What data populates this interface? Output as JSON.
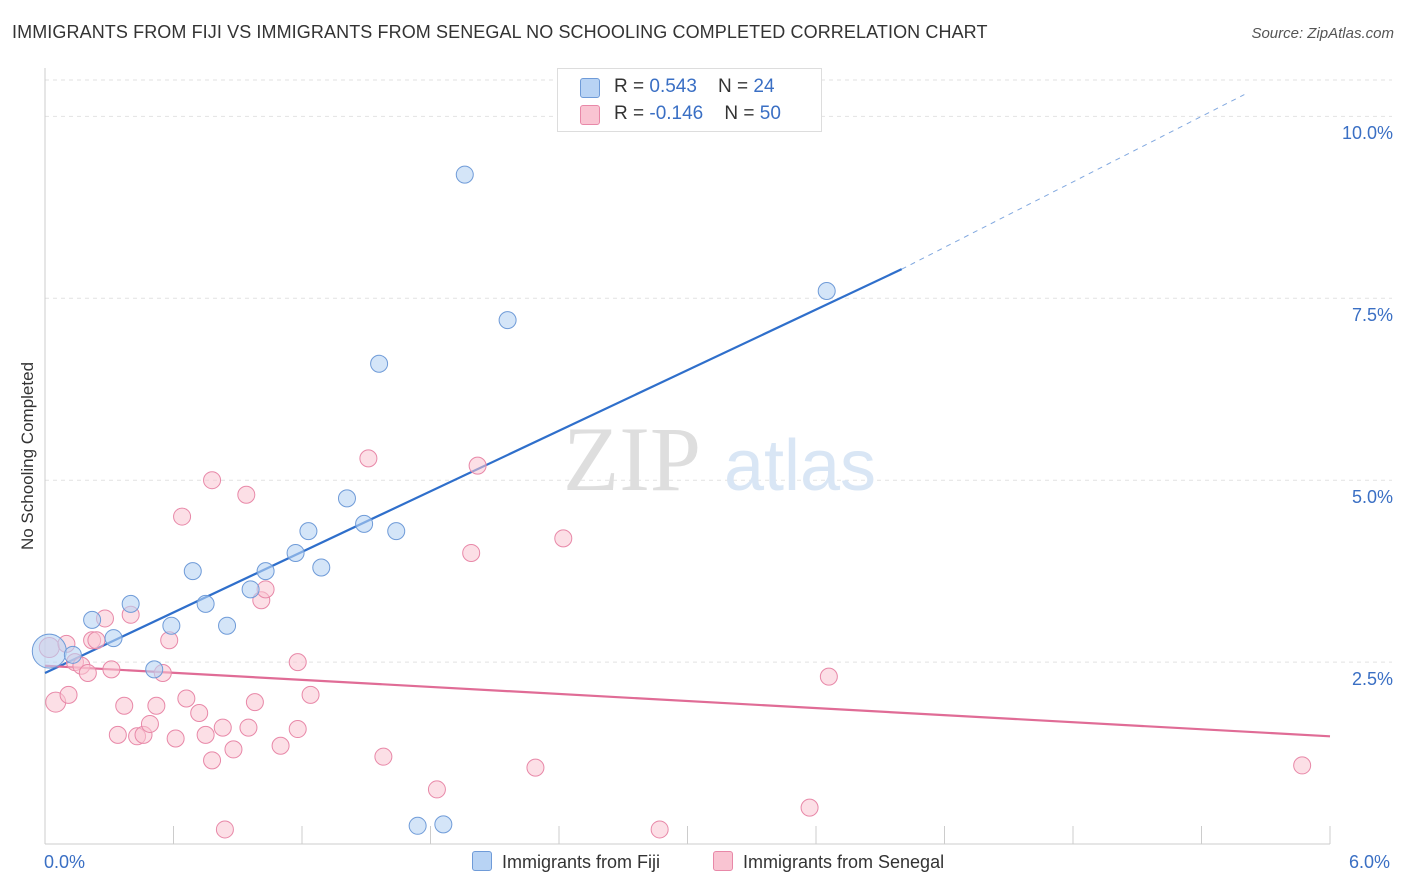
{
  "header": {
    "title": "IMMIGRANTS FROM FIJI VS IMMIGRANTS FROM SENEGAL NO SCHOOLING COMPLETED CORRELATION CHART",
    "source": "Source: ZipAtlas.com"
  },
  "watermark": {
    "zip": "ZIP",
    "atlas": "atlas"
  },
  "legend_top": {
    "rows": [
      {
        "r_label": "R = ",
        "r_value": "0.543",
        "n_label": "N = ",
        "n_value": "24"
      },
      {
        "r_label": "R = ",
        "r_value": "-0.146",
        "n_label": "N = ",
        "n_value": "50"
      }
    ]
  },
  "legend_bottom": {
    "fiji": "Immigrants from Fiji",
    "senegal": "Immigrants from Senegal"
  },
  "colors": {
    "fiji_fill": "#b8d3f4",
    "fiji_stroke": "#6f9bd8",
    "fiji_line": "#2f6fcb",
    "senegal_fill": "#f9c4d2",
    "senegal_stroke": "#e888a8",
    "senegal_line": "#e06c96",
    "tick_label": "#3a6fc4",
    "grid": "#e2e2e2"
  },
  "chart_data": {
    "type": "scatter",
    "title": "IMMIGRANTS FROM FIJI VS IMMIGRANTS FROM SENEGAL NO SCHOOLING COMPLETED CORRELATION CHART",
    "xlabel": "",
    "ylabel": "No Schooling Completed",
    "xlim": [
      0,
      6.0
    ],
    "ylim": [
      0,
      10.5
    ],
    "x_tick_labels": {
      "min": "0.0%",
      "max": "6.0%"
    },
    "y_ticks": [
      {
        "value": 2.5,
        "label": "2.5%"
      },
      {
        "value": 5.0,
        "label": "5.0%"
      },
      {
        "value": 7.5,
        "label": "7.5%"
      },
      {
        "value": 10.0,
        "label": "10.0%"
      }
    ],
    "grid": true,
    "legend_placement": "top-center",
    "series": [
      {
        "name": "Immigrants from Fiji",
        "r": 0.543,
        "n": 24,
        "points": [
          [
            0.02,
            2.65
          ],
          [
            0.13,
            2.6
          ],
          [
            0.22,
            3.08
          ],
          [
            0.32,
            2.83
          ],
          [
            0.4,
            3.3
          ],
          [
            0.51,
            2.4
          ],
          [
            0.59,
            3.0
          ],
          [
            0.69,
            3.75
          ],
          [
            0.75,
            3.3
          ],
          [
            0.85,
            3.0
          ],
          [
            0.96,
            3.5
          ],
          [
            1.03,
            3.75
          ],
          [
            1.17,
            4.0
          ],
          [
            1.23,
            4.3
          ],
          [
            1.29,
            3.8
          ],
          [
            1.41,
            4.75
          ],
          [
            1.49,
            4.4
          ],
          [
            1.64,
            4.3
          ],
          [
            1.56,
            6.6
          ],
          [
            1.96,
            9.2
          ],
          [
            2.16,
            7.2
          ],
          [
            3.65,
            7.6
          ],
          [
            1.74,
            0.25
          ],
          [
            1.86,
            0.27
          ]
        ],
        "trend": {
          "x0": 0.0,
          "y0": 2.35,
          "x1": 4.0,
          "y1": 7.9,
          "dashed_to_x": 5.6,
          "dashed_to_y": 10.3
        }
      },
      {
        "name": "Immigrants from Senegal",
        "r": -0.146,
        "n": 50,
        "points": [
          [
            0.02,
            2.7
          ],
          [
            0.05,
            1.95
          ],
          [
            0.11,
            2.05
          ],
          [
            0.14,
            2.5
          ],
          [
            0.17,
            2.45
          ],
          [
            0.2,
            2.35
          ],
          [
            0.22,
            2.8
          ],
          [
            0.24,
            2.8
          ],
          [
            0.28,
            3.1
          ],
          [
            0.31,
            2.4
          ],
          [
            0.34,
            1.5
          ],
          [
            0.37,
            1.9
          ],
          [
            0.4,
            3.15
          ],
          [
            0.43,
            1.48
          ],
          [
            0.46,
            1.5
          ],
          [
            0.49,
            1.65
          ],
          [
            0.52,
            1.9
          ],
          [
            0.55,
            2.35
          ],
          [
            0.58,
            2.8
          ],
          [
            0.61,
            1.45
          ],
          [
            0.64,
            4.5
          ],
          [
            0.66,
            2.0
          ],
          [
            0.72,
            1.8
          ],
          [
            0.75,
            1.5
          ],
          [
            0.78,
            5.0
          ],
          [
            0.78,
            1.15
          ],
          [
            0.83,
            1.6
          ],
          [
            0.84,
            0.2
          ],
          [
            0.88,
            1.3
          ],
          [
            0.94,
            4.8
          ],
          [
            0.95,
            1.6
          ],
          [
            0.98,
            1.95
          ],
          [
            1.01,
            3.35
          ],
          [
            1.03,
            3.5
          ],
          [
            1.1,
            1.35
          ],
          [
            1.18,
            2.5
          ],
          [
            1.18,
            1.58
          ],
          [
            1.24,
            2.05
          ],
          [
            1.51,
            5.3
          ],
          [
            1.58,
            1.2
          ],
          [
            1.83,
            0.75
          ],
          [
            1.99,
            4.0
          ],
          [
            2.02,
            5.2
          ],
          [
            2.29,
            1.05
          ],
          [
            2.42,
            4.2
          ],
          [
            2.87,
            0.2
          ],
          [
            3.57,
            0.5
          ],
          [
            3.66,
            2.3
          ],
          [
            5.87,
            1.08
          ],
          [
            0.1,
            2.75
          ]
        ],
        "trend": {
          "x0": 0.0,
          "y0": 2.45,
          "x1": 6.0,
          "y1": 1.48
        }
      }
    ]
  }
}
